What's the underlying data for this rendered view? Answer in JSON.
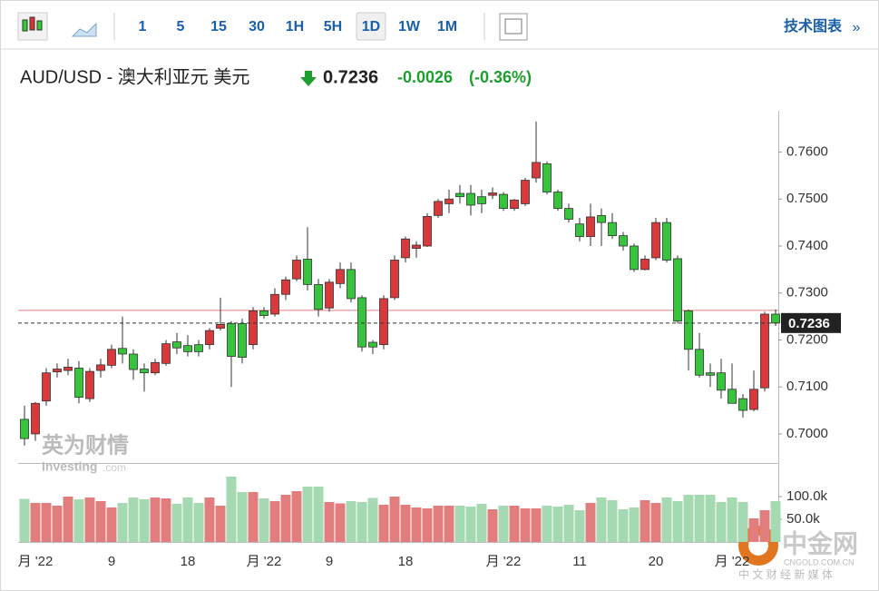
{
  "toolbar": {
    "intervals": [
      "1",
      "5",
      "15",
      "30",
      "1H",
      "5H",
      "1D",
      "1W",
      "1M"
    ],
    "active": "1D",
    "right_link": "技术图表",
    "right_arrow": "»"
  },
  "header": {
    "title": "AUD/USD - 澳大利亚元 美元",
    "price": "0.7236",
    "change": "-0.0026",
    "change_pct": "(-0.36%)"
  },
  "watermark": {
    "cn": "英为财情",
    "en": "Investing",
    "en_suffix": ".com"
  },
  "logo": {
    "name": "中金网",
    "domain": "CNGOLD.COM.CN",
    "slogan": "中 文 财 经 新 媒 体"
  },
  "chart_data": {
    "type": "candlestick",
    "categories": [
      null,
      "月 '22",
      null,
      null,
      null,
      null,
      null,
      null,
      "9",
      null,
      null,
      null,
      null,
      null,
      null,
      "18",
      null,
      null,
      null,
      null,
      null,
      null,
      "月 '22",
      null,
      null,
      null,
      null,
      null,
      "9",
      null,
      null,
      null,
      null,
      null,
      null,
      "18",
      null,
      null,
      null,
      null,
      null,
      null,
      null,
      null,
      "月 '22",
      null,
      null,
      null,
      null,
      null,
      null,
      "11",
      null,
      null,
      null,
      null,
      null,
      null,
      "20",
      null,
      null,
      null,
      null,
      null,
      null,
      "月 '22",
      null,
      null,
      null,
      null
    ],
    "open": [
      0.7031,
      0.7,
      0.707,
      0.7132,
      0.7135,
      0.714,
      0.7075,
      0.7135,
      0.7146,
      0.7182,
      0.717,
      0.7138,
      0.713,
      0.715,
      0.7196,
      0.7188,
      0.719,
      0.719,
      0.7225,
      0.7235,
      0.7235,
      0.719,
      0.7262,
      0.7255,
      0.7297,
      0.733,
      0.7372,
      0.7318,
      0.7268,
      0.732,
      0.735,
      0.729,
      0.7195,
      0.719,
      0.729,
      0.7375,
      0.7395,
      0.74,
      0.7465,
      0.749,
      0.7512,
      0.7512,
      0.7505,
      0.7508,
      0.751,
      0.748,
      0.749,
      0.7545,
      0.7575,
      0.7515,
      0.748,
      0.7447,
      0.742,
      0.7465,
      0.745,
      0.7422,
      0.74,
      0.735,
      0.7375,
      0.745,
      0.7373,
      0.7262,
      0.718,
      0.713,
      0.713,
      0.7095,
      0.7075,
      0.7052,
      0.7098,
      0.7255
    ],
    "high": [
      0.706,
      0.7068,
      0.714,
      0.715,
      0.716,
      0.7155,
      0.714,
      0.716,
      0.719,
      0.725,
      0.718,
      0.715,
      0.716,
      0.72,
      0.7215,
      0.721,
      0.72,
      0.7225,
      0.729,
      0.724,
      0.7245,
      0.727,
      0.727,
      0.731,
      0.7335,
      0.738,
      0.744,
      0.733,
      0.733,
      0.7365,
      0.7365,
      0.7295,
      0.72,
      0.7295,
      0.738,
      0.742,
      0.741,
      0.747,
      0.75,
      0.752,
      0.753,
      0.753,
      0.752,
      0.7525,
      0.7515,
      0.75,
      0.7545,
      0.7665,
      0.758,
      0.752,
      0.749,
      0.746,
      0.749,
      0.748,
      0.747,
      0.743,
      0.7405,
      0.738,
      0.746,
      0.746,
      0.738,
      0.7265,
      0.7215,
      0.715,
      0.716,
      0.715,
      0.7085,
      0.7135,
      0.726,
      0.7265
    ],
    "low": [
      0.6975,
      0.6985,
      0.706,
      0.712,
      0.7125,
      0.7065,
      0.7068,
      0.712,
      0.714,
      0.715,
      0.7115,
      0.709,
      0.7125,
      0.7145,
      0.717,
      0.7165,
      0.7165,
      0.718,
      0.722,
      0.71,
      0.715,
      0.718,
      0.7245,
      0.725,
      0.7285,
      0.7325,
      0.7305,
      0.725,
      0.726,
      0.731,
      0.728,
      0.7175,
      0.717,
      0.718,
      0.7285,
      0.7365,
      0.7375,
      0.7398,
      0.746,
      0.747,
      0.749,
      0.7465,
      0.747,
      0.75,
      0.7475,
      0.7475,
      0.7485,
      0.7535,
      0.751,
      0.7475,
      0.745,
      0.741,
      0.74,
      0.74,
      0.7415,
      0.739,
      0.7345,
      0.7348,
      0.737,
      0.7365,
      0.7235,
      0.7135,
      0.712,
      0.71,
      0.7075,
      0.7065,
      0.7035,
      0.7048,
      0.709,
      0.723
    ],
    "close": [
      0.699,
      0.7065,
      0.713,
      0.7138,
      0.7142,
      0.7078,
      0.7133,
      0.7147,
      0.718,
      0.717,
      0.7137,
      0.713,
      0.7152,
      0.7192,
      0.7183,
      0.7175,
      0.7175,
      0.722,
      0.7233,
      0.7165,
      0.7163,
      0.7262,
      0.7252,
      0.7297,
      0.7328,
      0.737,
      0.7318,
      0.7265,
      0.7323,
      0.735,
      0.7288,
      0.7185,
      0.7185,
      0.7288,
      0.737,
      0.7415,
      0.7402,
      0.7463,
      0.7495,
      0.75,
      0.7505,
      0.7487,
      0.749,
      0.7513,
      0.748,
      0.7498,
      0.754,
      0.7578,
      0.7515,
      0.748,
      0.7457,
      0.742,
      0.7462,
      0.745,
      0.7422,
      0.74,
      0.735,
      0.7372,
      0.745,
      0.737,
      0.724,
      0.718,
      0.7125,
      0.7125,
      0.7093,
      0.7065,
      0.705,
      0.7095,
      0.7255,
      0.7236
    ],
    "volume": [
      95,
      86,
      86,
      80,
      100,
      94,
      98,
      90,
      76,
      86,
      98,
      94,
      98,
      96,
      84,
      98,
      86,
      98,
      80,
      144,
      110,
      110,
      96,
      90,
      104,
      112,
      122,
      122,
      88,
      85,
      90,
      88,
      97,
      82,
      100,
      82,
      76,
      74,
      80,
      80,
      80,
      78,
      84,
      72,
      80,
      80,
      74,
      74,
      80,
      78,
      82,
      70,
      86,
      98,
      92,
      72,
      76,
      92,
      86,
      98,
      90,
      104,
      104,
      104,
      88,
      98,
      88,
      52,
      70,
      90
    ],
    "ylim": [
      0.6938,
      0.7688
    ],
    "yticks": [
      {
        "value": 0.7,
        "label": "0.7000"
      },
      {
        "value": 0.71,
        "label": "0.7100"
      },
      {
        "value": 0.72,
        "label": "0.7200"
      },
      {
        "value": 0.73,
        "label": "0.7300"
      },
      {
        "value": 0.74,
        "label": "0.7400"
      },
      {
        "value": 0.75,
        "label": "0.7500"
      },
      {
        "value": 0.76,
        "label": "0.7600"
      }
    ],
    "vlim": [
      0,
      170
    ],
    "vticks": [
      {
        "value": 50,
        "label": "50.0k"
      },
      {
        "value": 100,
        "label": "100.0k"
      }
    ],
    "last_price": {
      "value": 0.7236,
      "label": "0.7236"
    },
    "prev_close_line": 0.7263,
    "up_color": "#d9393b",
    "down_color": "#35c43a",
    "up_volume_color": "#e27d7e",
    "down_volume_color": "#a5d9b2"
  }
}
